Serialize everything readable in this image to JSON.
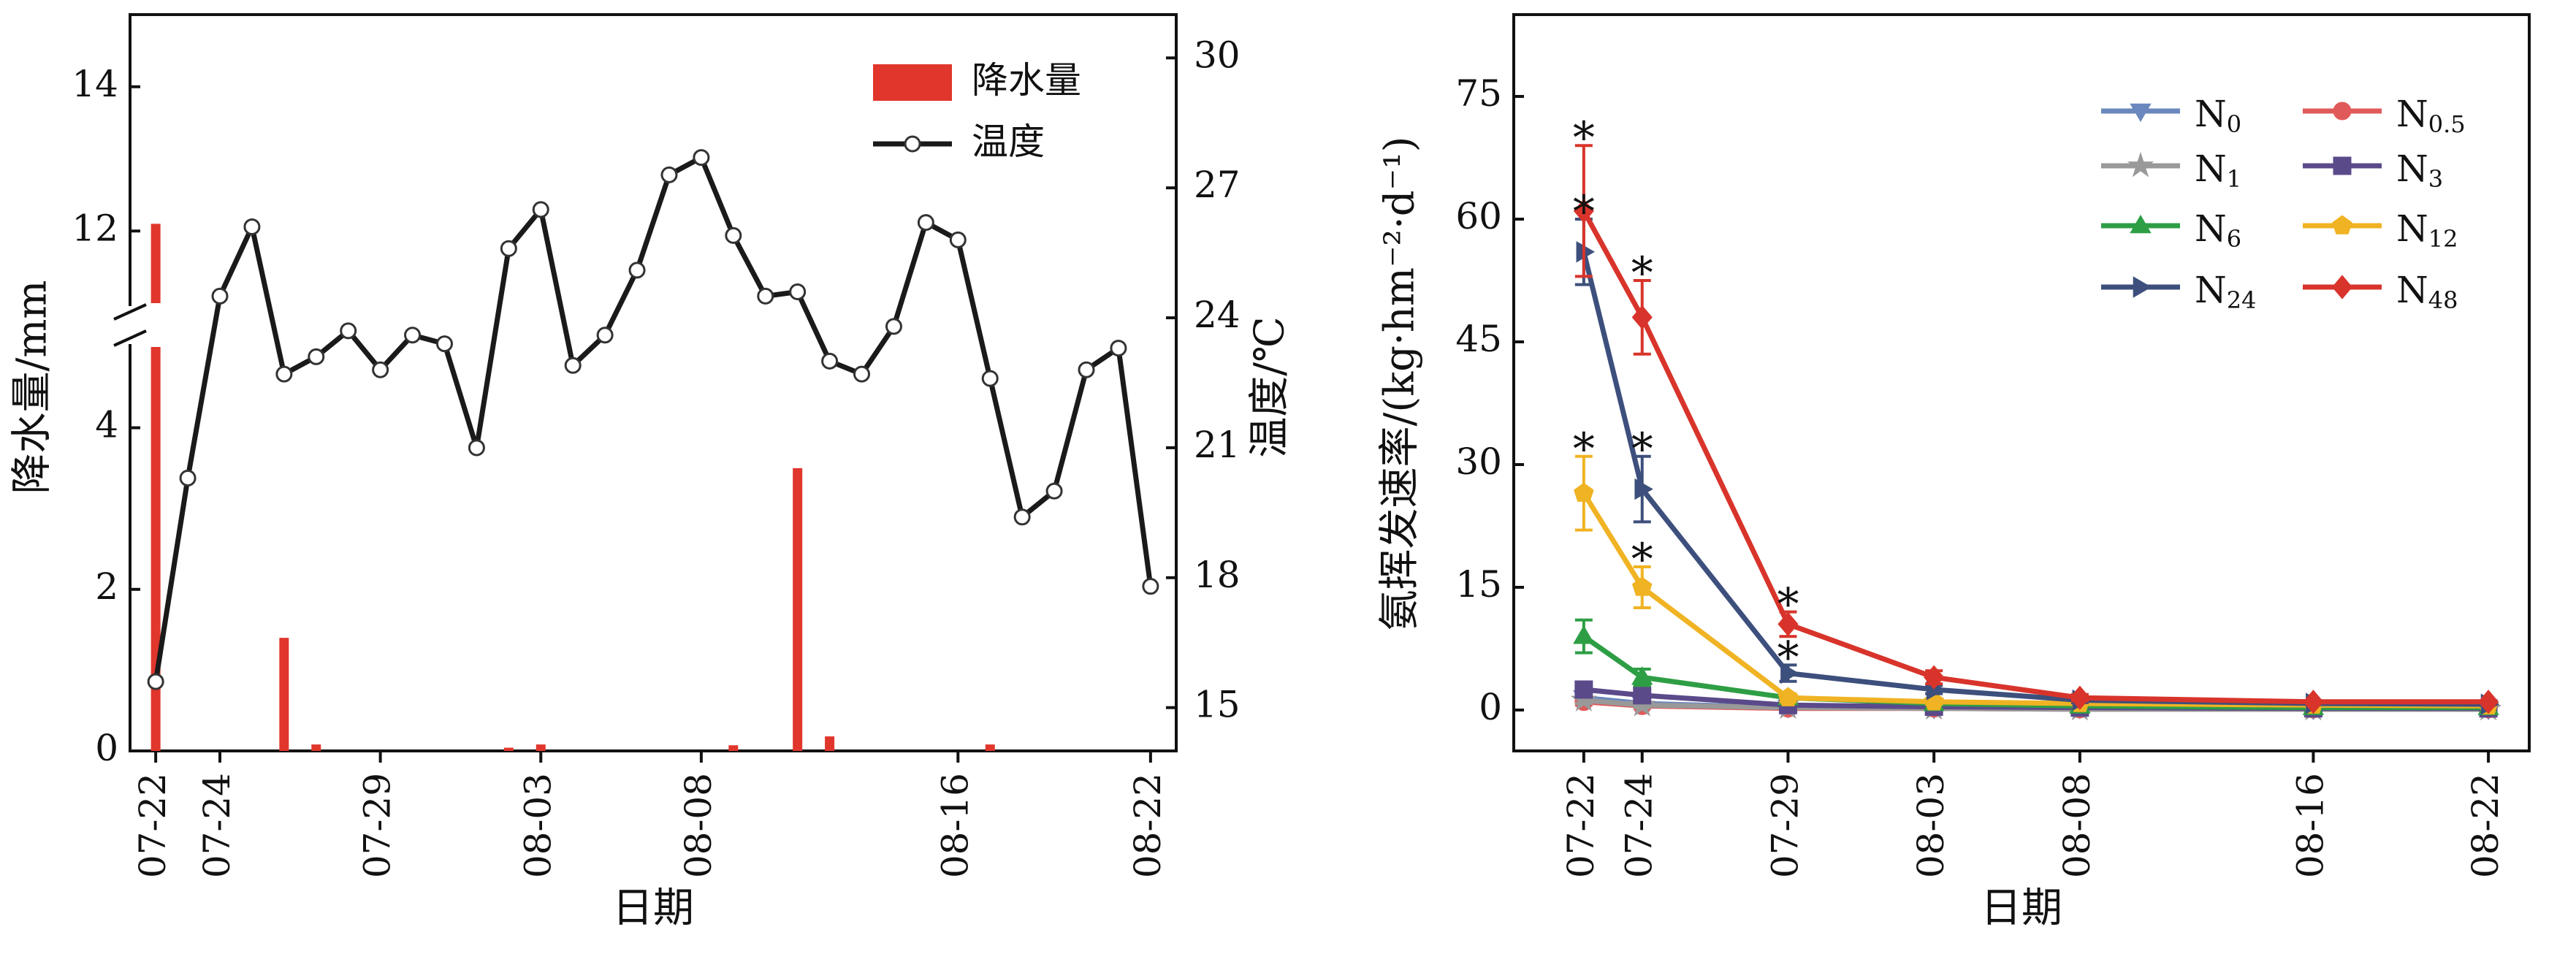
{
  "chart_data": [
    {
      "type": "bar",
      "xlabel": "日期",
      "ylabel": "降水量/mm",
      "y2label": "温度/℃",
      "x_tick_labels": [
        "07-22",
        "07-24",
        "07-29",
        "08-03",
        "08-08",
        "08-16",
        "08-22"
      ],
      "x_tick_dates": [
        22,
        24,
        29,
        34,
        39,
        47,
        53
      ],
      "xlim": [
        21.2,
        53.8
      ],
      "ylim_lower": [
        0,
        5
      ],
      "ylim_upper": [
        11,
        15
      ],
      "y_ticks_lower": [
        "0",
        "2",
        "4"
      ],
      "y_ticks_upper": [
        "12",
        "14"
      ],
      "axis_break": true,
      "y2lim": [
        14,
        31
      ],
      "y2_ticks": [
        "15",
        "18",
        "21",
        "24",
        "27",
        "30"
      ],
      "legend_position": "top-right",
      "legend": {
        "precip": "降水量",
        "temp": "温度"
      },
      "colors": {
        "precip": "#e0362c",
        "temp": "#1a1a1a"
      },
      "precipitation": {
        "dates": [
          22,
          26,
          27,
          33,
          34,
          40,
          42,
          43,
          48
        ],
        "values": [
          12.1,
          1.4,
          0.08,
          0.04,
          0.08,
          0.07,
          3.5,
          0.18,
          0.08
        ]
      },
      "temperature": {
        "dates": [
          22,
          23,
          24,
          25,
          26,
          27,
          28,
          29,
          30,
          31,
          32,
          33,
          34,
          35,
          36,
          37,
          38,
          39,
          40,
          41,
          42,
          43,
          44,
          45,
          46,
          47,
          48,
          49,
          50,
          51,
          52,
          53
        ],
        "values": [
          15.6,
          20.3,
          24.5,
          26.1,
          22.7,
          23.1,
          23.7,
          22.8,
          23.6,
          23.4,
          21.0,
          25.6,
          26.5,
          22.9,
          23.6,
          25.1,
          27.3,
          27.7,
          25.9,
          24.5,
          24.6,
          23.0,
          22.7,
          23.8,
          26.2,
          25.8,
          22.6,
          19.4,
          20.0,
          22.8,
          23.3,
          17.8
        ]
      }
    },
    {
      "type": "line",
      "xlabel": "日期",
      "ylabel": "氨挥发速率/(kg·hm⁻²·d⁻¹)",
      "x_tick_labels": [
        "07-22",
        "07-24",
        "07-29",
        "08-03",
        "08-08",
        "08-16",
        "08-22"
      ],
      "x_dates": [
        22,
        24,
        29,
        34,
        39,
        47,
        53
      ],
      "xlim": [
        19.6,
        54.4
      ],
      "ylim": [
        -5,
        85
      ],
      "y_ticks": [
        "0",
        "15",
        "30",
        "45",
        "60",
        "75"
      ],
      "legend_position": "top-right",
      "series": [
        {
          "name": "N0",
          "base": "N",
          "sub": "0",
          "color": "#6a88bd",
          "marker": "triangle-down",
          "values": [
            1.5,
            0.8,
            0.3,
            0.2,
            0.2,
            0.1,
            0.1
          ],
          "err": [
            0.5,
            0.3,
            0.2,
            0.1,
            0.1,
            0.1,
            0.1
          ],
          "sig": []
        },
        {
          "name": "N0.5",
          "base": "N",
          "sub": "0.5",
          "color": "#e05a5a",
          "marker": "circle",
          "values": [
            1.0,
            0.5,
            0.2,
            0.2,
            0.1,
            0.1,
            0.1
          ],
          "err": [
            0.4,
            0.3,
            0.1,
            0.1,
            0.1,
            0.1,
            0.1
          ],
          "sig": []
        },
        {
          "name": "N1",
          "base": "N",
          "sub": "1",
          "color": "#999999",
          "marker": "star",
          "values": [
            1.2,
            0.6,
            0.3,
            0.2,
            0.1,
            0.1,
            0.1
          ],
          "err": [
            0.4,
            0.3,
            0.1,
            0.1,
            0.1,
            0.1,
            0.1
          ],
          "sig": []
        },
        {
          "name": "N3",
          "base": "N",
          "sub": "3",
          "color": "#5b4a8a",
          "marker": "square",
          "values": [
            2.5,
            1.8,
            0.6,
            0.4,
            0.3,
            0.2,
            0.2
          ],
          "err": [
            0.6,
            0.4,
            0.2,
            0.1,
            0.1,
            0.1,
            0.1
          ],
          "sig": []
        },
        {
          "name": "N6",
          "base": "N",
          "sub": "6",
          "color": "#2e9e45",
          "marker": "triangle-up",
          "values": [
            9.0,
            4.0,
            1.5,
            0.8,
            0.5,
            0.3,
            0.3
          ],
          "err": [
            2.0,
            1.0,
            0.4,
            0.2,
            0.1,
            0.1,
            0.1
          ],
          "sig": []
        },
        {
          "name": "N12",
          "base": "N",
          "sub": "12",
          "color": "#f0b323",
          "marker": "pentagon",
          "values": [
            26.5,
            15.0,
            1.5,
            1.0,
            0.8,
            0.6,
            0.5
          ],
          "err": [
            4.5,
            2.5,
            0.5,
            0.3,
            0.2,
            0.1,
            0.1
          ],
          "sig": [
            0,
            1
          ]
        },
        {
          "name": "N24",
          "base": "N",
          "sub": "24",
          "color": "#3d4f7c",
          "marker": "triangle-right",
          "values": [
            56.0,
            27.0,
            4.5,
            2.5,
            1.2,
            0.8,
            0.7
          ],
          "err": [
            4.0,
            4.0,
            1.0,
            0.5,
            0.3,
            0.2,
            0.2
          ],
          "sig": [
            0,
            1,
            2
          ]
        },
        {
          "name": "N48",
          "base": "N",
          "sub": "48",
          "color": "#d8342b",
          "marker": "diamond",
          "values": [
            61.0,
            48.0,
            10.5,
            4.0,
            1.5,
            1.0,
            1.0
          ],
          "err": [
            8.0,
            4.5,
            1.5,
            0.8,
            0.4,
            0.2,
            0.2
          ],
          "sig": [
            0,
            1,
            2
          ]
        }
      ],
      "significance_mark": "*"
    }
  ]
}
